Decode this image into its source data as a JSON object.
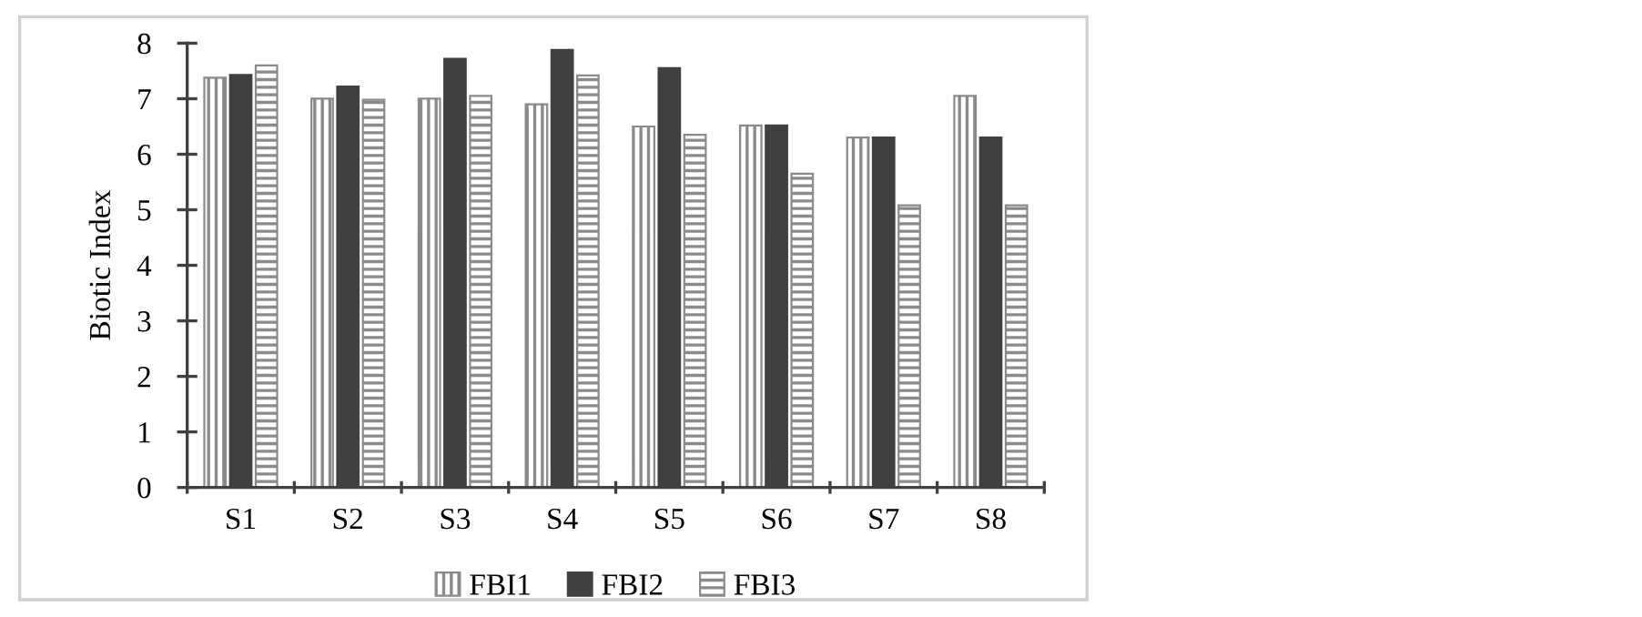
{
  "chart_data": {
    "type": "bar",
    "ylabel": "Biotic Index",
    "categories": [
      "S1",
      "S2",
      "S3",
      "S4",
      "S5",
      "S6",
      "S7",
      "S8"
    ],
    "series": [
      {
        "name": "FBI1",
        "color": "#8a8a8a",
        "values": [
          7.38,
          7.0,
          7.0,
          6.9,
          6.5,
          6.52,
          6.3,
          7.05
        ]
      },
      {
        "name": "FBI2",
        "color": "#404040",
        "values": [
          7.43,
          7.22,
          7.72,
          7.88,
          7.55,
          6.52,
          6.3,
          6.3
        ]
      },
      {
        "name": "FBI3",
        "color": "#8a8a8a",
        "values": [
          7.6,
          6.98,
          7.05,
          7.42,
          6.35,
          5.65,
          5.08,
          5.08
        ]
      }
    ],
    "ylim": [
      0,
      8
    ],
    "yticks": [
      0,
      1,
      2,
      3,
      4,
      5,
      6,
      7,
      8
    ],
    "grid": false,
    "legend": "bottom"
  }
}
